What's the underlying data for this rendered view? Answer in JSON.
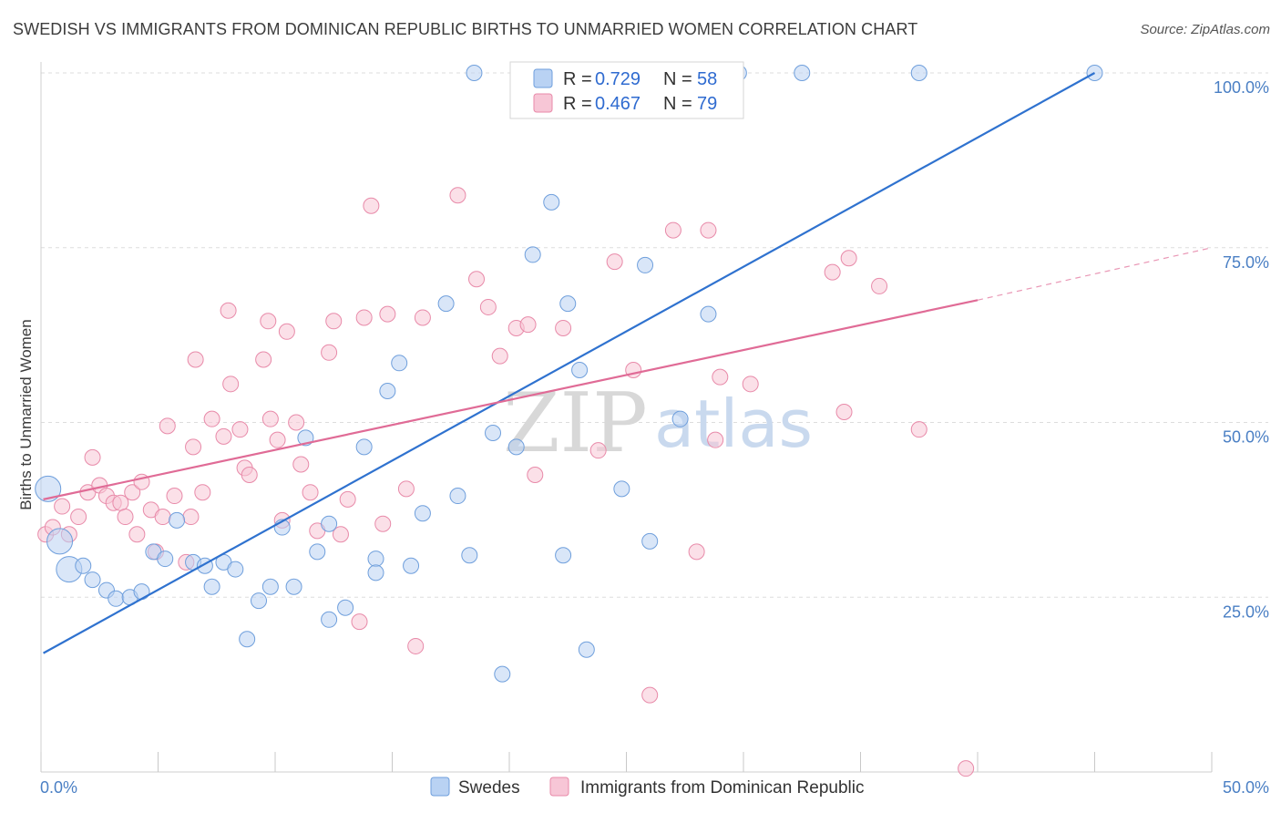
{
  "title": "SWEDISH VS IMMIGRANTS FROM DOMINICAN REPUBLIC BIRTHS TO UNMARRIED WOMEN CORRELATION CHART",
  "source": "Source: ZipAtlas.com",
  "watermark": {
    "zip": "ZIP",
    "atlas": "atlas"
  },
  "colors": {
    "blue_fill": "#b9d2f3",
    "blue_stroke": "#6f9fdc",
    "blue_line": "#2f72cf",
    "pink_fill": "#f7c6d6",
    "pink_stroke": "#e88aa9",
    "pink_line": "#e06b96",
    "grid": "#dddddd",
    "axis_text": "#4a7fc4"
  },
  "legend": {
    "rows": [
      {
        "r_label": "R =",
        "r_value": "0.729",
        "n_label": "N =",
        "n_value": "58"
      },
      {
        "r_label": "R =",
        "r_value": "0.467",
        "n_label": "N =",
        "n_value": "79"
      }
    ]
  },
  "bottom_legend": [
    "Swedes",
    "Immigrants from Dominican Republic"
  ],
  "chart_data": {
    "type": "scatter",
    "title": "SWEDISH VS IMMIGRANTS FROM DOMINICAN REPUBLIC BIRTHS TO UNMARRIED WOMEN CORRELATION CHART",
    "xlabel": "",
    "ylabel": "Births to Unmarried Women",
    "xlim": [
      0,
      50
    ],
    "ylim": [
      0,
      100
    ],
    "x_tick_labels": [
      "0.0%",
      "50.0%"
    ],
    "y_tick_labels": [
      "25.0%",
      "50.0%",
      "75.0%",
      "100.0%"
    ],
    "y_ticks": [
      25,
      50,
      75,
      100
    ],
    "grid": true,
    "legend_position": "top-center",
    "series": [
      {
        "name": "Swedes",
        "color": "#6f9fdc",
        "r": 0.729,
        "n": 58,
        "trend": {
          "x0": 0.1,
          "y0": 17.0,
          "x1": 45,
          "y1": 100
        },
        "points": [
          [
            0.3,
            40.5,
            1
          ],
          [
            0.8,
            33.0,
            1
          ],
          [
            1.2,
            29.0,
            1
          ],
          [
            1.8,
            29.5,
            0
          ],
          [
            2.2,
            27.5,
            0
          ],
          [
            2.8,
            26.0,
            0
          ],
          [
            3.2,
            24.8,
            0
          ],
          [
            3.8,
            25.0,
            0
          ],
          [
            4.3,
            25.8,
            0
          ],
          [
            4.8,
            31.5,
            0
          ],
          [
            5.3,
            30.5,
            0
          ],
          [
            5.8,
            36.0,
            0
          ],
          [
            6.5,
            30.0,
            0
          ],
          [
            7.0,
            29.5,
            0
          ],
          [
            7.3,
            26.5,
            0
          ],
          [
            7.8,
            30.0,
            0
          ],
          [
            8.3,
            29.0,
            0
          ],
          [
            8.8,
            19.0,
            0
          ],
          [
            9.3,
            24.5,
            0
          ],
          [
            9.8,
            26.5,
            0
          ],
          [
            10.3,
            35.0,
            0
          ],
          [
            10.8,
            26.5,
            0
          ],
          [
            11.3,
            47.8,
            0
          ],
          [
            11.8,
            31.5,
            0
          ],
          [
            12.3,
            21.8,
            0
          ],
          [
            12.3,
            35.5,
            0
          ],
          [
            13.0,
            23.5,
            0
          ],
          [
            13.8,
            46.5,
            0
          ],
          [
            14.3,
            30.5,
            0
          ],
          [
            14.3,
            28.5,
            0
          ],
          [
            14.8,
            54.5,
            0
          ],
          [
            15.3,
            58.5,
            0
          ],
          [
            15.8,
            29.5,
            0
          ],
          [
            16.3,
            37.0,
            0
          ],
          [
            17.3,
            67.0,
            0
          ],
          [
            17.8,
            39.5,
            0
          ],
          [
            18.3,
            31.0,
            0
          ],
          [
            18.5,
            100,
            0
          ],
          [
            19.3,
            48.5,
            0
          ],
          [
            19.7,
            14.0,
            0
          ],
          [
            20.3,
            46.5,
            0
          ],
          [
            21.0,
            74.0,
            0
          ],
          [
            21.8,
            81.5,
            0
          ],
          [
            22.3,
            31.0,
            0
          ],
          [
            22.5,
            67.0,
            0
          ],
          [
            23.0,
            57.5,
            0
          ],
          [
            23.3,
            17.5,
            0
          ],
          [
            24.8,
            40.5,
            0
          ],
          [
            25.8,
            72.5,
            0
          ],
          [
            26.0,
            33.0,
            0
          ],
          [
            27.3,
            50.5,
            0
          ],
          [
            27.8,
            100,
            0
          ],
          [
            28.5,
            65.5,
            0
          ],
          [
            29.8,
            100,
            0
          ],
          [
            32.5,
            100,
            0
          ],
          [
            37.5,
            100,
            0
          ],
          [
            45.0,
            100,
            0
          ]
        ]
      },
      {
        "name": "Immigrants from Dominican Republic",
        "color": "#e88aa9",
        "r": 0.467,
        "n": 79,
        "trend": {
          "x0": 0.1,
          "y0": 39.0,
          "x1": 40,
          "y1": 67.5
        },
        "trend_dashed": {
          "x0": 40,
          "y0": 67.5,
          "x1": 50,
          "y1": 75.0
        },
        "points": [
          [
            0.2,
            34.0,
            0
          ],
          [
            0.5,
            35.0,
            0
          ],
          [
            0.9,
            38.0,
            0
          ],
          [
            1.2,
            34.0,
            0
          ],
          [
            1.6,
            36.5,
            0
          ],
          [
            2.0,
            40.0,
            0
          ],
          [
            2.2,
            45.0,
            0
          ],
          [
            2.5,
            41.0,
            0
          ],
          [
            2.8,
            39.5,
            0
          ],
          [
            3.1,
            38.5,
            0
          ],
          [
            3.4,
            38.5,
            0
          ],
          [
            3.6,
            36.5,
            0
          ],
          [
            3.9,
            40.0,
            0
          ],
          [
            4.1,
            34.0,
            0
          ],
          [
            4.3,
            41.5,
            0
          ],
          [
            4.7,
            37.5,
            0
          ],
          [
            4.9,
            31.5,
            0
          ],
          [
            5.2,
            36.5,
            0
          ],
          [
            5.4,
            49.5,
            0
          ],
          [
            5.7,
            39.5,
            0
          ],
          [
            6.2,
            30.0,
            0
          ],
          [
            6.4,
            36.5,
            0
          ],
          [
            6.5,
            46.5,
            0
          ],
          [
            6.6,
            59.0,
            0
          ],
          [
            6.9,
            40.0,
            0
          ],
          [
            7.3,
            50.5,
            0
          ],
          [
            7.8,
            48.0,
            0
          ],
          [
            8.0,
            66.0,
            0
          ],
          [
            8.1,
            55.5,
            0
          ],
          [
            8.5,
            49.0,
            0
          ],
          [
            8.7,
            43.5,
            0
          ],
          [
            8.9,
            42.5,
            0
          ],
          [
            9.5,
            59.0,
            0
          ],
          [
            9.7,
            64.5,
            0
          ],
          [
            9.8,
            50.5,
            0
          ],
          [
            10.1,
            47.5,
            0
          ],
          [
            10.3,
            36.0,
            0
          ],
          [
            10.5,
            63.0,
            0
          ],
          [
            10.9,
            50.0,
            0
          ],
          [
            11.1,
            44.0,
            0
          ],
          [
            11.5,
            40.0,
            0
          ],
          [
            11.8,
            34.5,
            0
          ],
          [
            12.3,
            60.0,
            0
          ],
          [
            12.5,
            64.5,
            0
          ],
          [
            12.8,
            34.0,
            0
          ],
          [
            13.1,
            39.0,
            0
          ],
          [
            13.6,
            21.5,
            0
          ],
          [
            13.8,
            65.0,
            0
          ],
          [
            14.1,
            81.0,
            0
          ],
          [
            14.6,
            35.5,
            0
          ],
          [
            14.8,
            65.5,
            0
          ],
          [
            15.6,
            40.5,
            0
          ],
          [
            16.0,
            18.0,
            0
          ],
          [
            16.3,
            65.0,
            0
          ],
          [
            17.8,
            82.5,
            0
          ],
          [
            18.6,
            70.5,
            0
          ],
          [
            19.1,
            66.5,
            0
          ],
          [
            19.6,
            59.5,
            0
          ],
          [
            20.3,
            63.5,
            0
          ],
          [
            20.8,
            64.0,
            0
          ],
          [
            21.1,
            42.5,
            0
          ],
          [
            22.3,
            63.5,
            0
          ],
          [
            23.8,
            46.0,
            0
          ],
          [
            24.5,
            73.0,
            0
          ],
          [
            25.3,
            57.5,
            0
          ],
          [
            26.0,
            11.0,
            0
          ],
          [
            27.0,
            77.5,
            0
          ],
          [
            28.0,
            31.5,
            0
          ],
          [
            28.5,
            77.5,
            0
          ],
          [
            28.8,
            47.5,
            0
          ],
          [
            29.0,
            56.5,
            0
          ],
          [
            30.3,
            55.5,
            0
          ],
          [
            33.8,
            71.5,
            0
          ],
          [
            34.3,
            51.5,
            0
          ],
          [
            34.5,
            73.5,
            0
          ],
          [
            35.8,
            69.5,
            0
          ],
          [
            37.5,
            49.0,
            0
          ],
          [
            39.5,
            0.5,
            0
          ]
        ]
      }
    ]
  }
}
